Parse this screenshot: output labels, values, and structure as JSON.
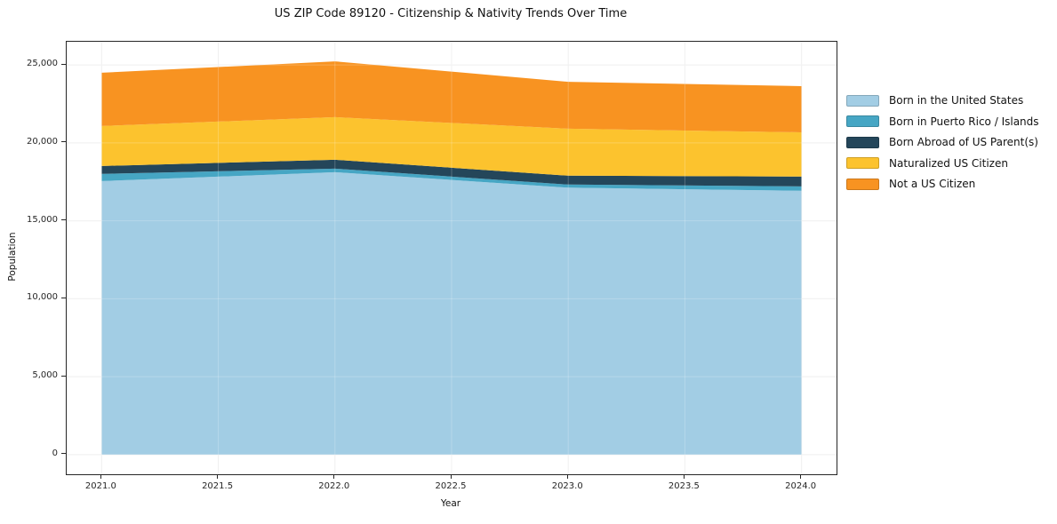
{
  "figure": {
    "title": "US ZIP Code 89120 - Citizenship & Nativity Trends Over Time",
    "xlabel": "Year",
    "ylabel": "Population"
  },
  "chart_data": {
    "type": "area",
    "stacked": true,
    "title": "US ZIP Code 89120 - Citizenship & Nativity Trends Over Time",
    "xlabel": "Year",
    "ylabel": "Population",
    "grid": true,
    "legend_position": "right-outside",
    "x": [
      2021,
      2022,
      2023,
      2024
    ],
    "xlim": [
      2020.85,
      2024.15
    ],
    "ylim": [
      -1260,
      26490
    ],
    "x_ticks": [
      2021.0,
      2021.5,
      2022.0,
      2022.5,
      2023.0,
      2023.5,
      2024.0
    ],
    "x_tick_labels": [
      "2021.0",
      "2021.5",
      "2022.0",
      "2022.5",
      "2023.0",
      "2023.5",
      "2024.0"
    ],
    "y_ticks": [
      0,
      5000,
      10000,
      15000,
      20000,
      25000
    ],
    "y_tick_labels": [
      "0",
      "5,000",
      "10,000",
      "15,000",
      "20,000",
      "25,000"
    ],
    "series": [
      {
        "name": "Born in the United States",
        "color": "#a2cde4",
        "values": [
          17550,
          18120,
          17130,
          16930
        ]
      },
      {
        "name": "Born in Puerto Rico / Islands",
        "color": "#46a6c4",
        "values": [
          460,
          230,
          200,
          280
        ]
      },
      {
        "name": "Born Abroad of US Parent(s)",
        "color": "#24465a",
        "values": [
          510,
          570,
          570,
          630
        ]
      },
      {
        "name": "Naturalized US Citizen",
        "color": "#fcc32e",
        "values": [
          2560,
          2730,
          3010,
          2840
        ]
      },
      {
        "name": "Not a US Citizen",
        "color": "#f89321",
        "values": [
          3420,
          3580,
          3010,
          2960
        ]
      }
    ],
    "totals": [
      24500,
      25230,
      23920,
      23640
    ]
  },
  "colors": {
    "spine": "#262626",
    "gridline": "#ececec",
    "text": "#111111"
  }
}
